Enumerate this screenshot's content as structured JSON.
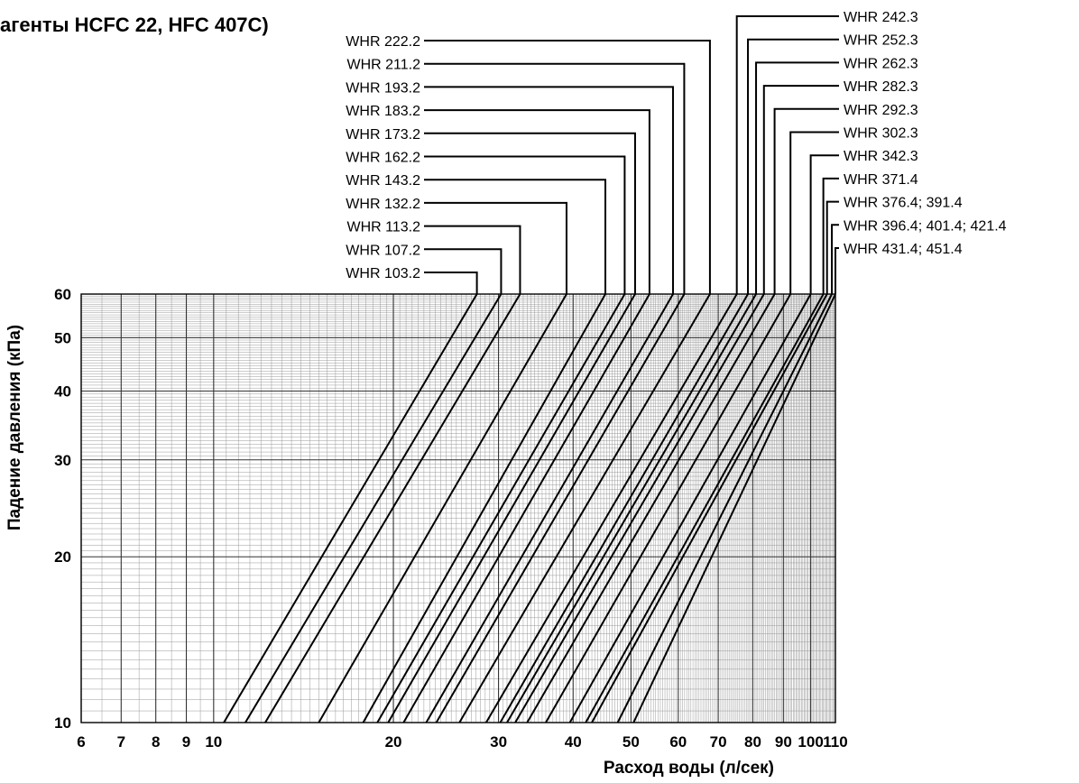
{
  "chart_data": {
    "type": "line",
    "title": "агенты HCFC 22, HFC 407C)",
    "xlabel": "Расход воды (л/сек)",
    "ylabel": "Падение давления (кПа)",
    "x_scale": "log",
    "y_scale": "log",
    "xlim": [
      6,
      110
    ],
    "ylim": [
      10,
      60
    ],
    "x_ticks": [
      6,
      7,
      8,
      9,
      10,
      20,
      30,
      40,
      50,
      60,
      70,
      80,
      90,
      100,
      110
    ],
    "y_ticks": [
      10,
      20,
      30,
      40,
      50,
      60
    ],
    "grid": true,
    "series": [
      {
        "name": "WHR 103.2",
        "points": [
          [
            10.4,
            10
          ],
          [
            27.6,
            60
          ]
        ]
      },
      {
        "name": "WHR 107.2",
        "points": [
          [
            11.3,
            10
          ],
          [
            30.3,
            60
          ]
        ]
      },
      {
        "name": "WHR 113.2",
        "points": [
          [
            12.2,
            10
          ],
          [
            32.6,
            60
          ]
        ]
      },
      {
        "name": "WHR 132.2",
        "points": [
          [
            15.0,
            10
          ],
          [
            39.0,
            60
          ]
        ]
      },
      {
        "name": "WHR 143.2",
        "points": [
          [
            17.8,
            10
          ],
          [
            45.3,
            60
          ]
        ]
      },
      {
        "name": "WHR 162.2",
        "points": [
          [
            18.8,
            10
          ],
          [
            48.8,
            60
          ]
        ]
      },
      {
        "name": "WHR 173.2",
        "points": [
          [
            19.6,
            10
          ],
          [
            50.8,
            60
          ]
        ]
      },
      {
        "name": "WHR 183.2",
        "points": [
          [
            20.8,
            10
          ],
          [
            53.7,
            60
          ]
        ]
      },
      {
        "name": "WHR 193.2",
        "points": [
          [
            22.7,
            10
          ],
          [
            58.8,
            60
          ]
        ]
      },
      {
        "name": "WHR 211.2",
        "points": [
          [
            23.6,
            10
          ],
          [
            61.4,
            60
          ]
        ]
      },
      {
        "name": "WHR 222.2",
        "points": [
          [
            25.8,
            10
          ],
          [
            67.8,
            60
          ]
        ]
      },
      {
        "name": "WHR 242.3",
        "points": [
          [
            28.6,
            10
          ],
          [
            75.2,
            60
          ]
        ]
      },
      {
        "name": "WHR 252.3",
        "points": [
          [
            30.2,
            10
          ],
          [
            78.5,
            60
          ]
        ]
      },
      {
        "name": "WHR 262.3",
        "points": [
          [
            31.0,
            10
          ],
          [
            81.0,
            60
          ]
        ]
      },
      {
        "name": "WHR 282.3",
        "points": [
          [
            32.0,
            10
          ],
          [
            83.5,
            60
          ]
        ]
      },
      {
        "name": "WHR 292.3",
        "points": [
          [
            33.5,
            10
          ],
          [
            87.0,
            60
          ]
        ]
      },
      {
        "name": "WHR 302.3",
        "points": [
          [
            36.0,
            10
          ],
          [
            92.5,
            60
          ]
        ]
      },
      {
        "name": "WHR 342.3",
        "points": [
          [
            39.5,
            10
          ],
          [
            100.0,
            60
          ]
        ]
      },
      {
        "name": "WHR 371.4",
        "points": [
          [
            42.0,
            10
          ],
          [
            105.0,
            60
          ]
        ]
      },
      {
        "name": "WHR 376.4; 391.4",
        "points": [
          [
            43.0,
            10
          ],
          [
            106.5,
            60
          ]
        ]
      },
      {
        "name": "WHR 396.4; 401.4; 421.4",
        "points": [
          [
            47.5,
            10
          ],
          [
            108.5,
            60
          ]
        ]
      },
      {
        "name": "WHR 431.4; 451.4",
        "points": [
          [
            50.5,
            10
          ],
          [
            110.0,
            60
          ]
        ]
      }
    ],
    "label_side_left": [
      "WHR 103.2",
      "WHR 107.2",
      "WHR 113.2",
      "WHR 132.2",
      "WHR 143.2",
      "WHR 162.2",
      "WHR 173.2",
      "WHR 183.2",
      "WHR 193.2",
      "WHR 211.2",
      "WHR 222.2"
    ],
    "label_side_right": [
      "WHR 242.3",
      "WHR 252.3",
      "WHR 262.3",
      "WHR 282.3",
      "WHR 292.3",
      "WHR 302.3",
      "WHR 342.3",
      "WHR 371.4",
      "WHR 376.4; 391.4",
      "WHR 396.4; 401.4; 421.4",
      "WHR 431.4; 451.4"
    ]
  }
}
